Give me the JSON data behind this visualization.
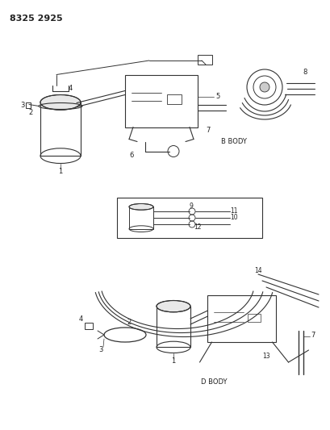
{
  "title": "8325 2925",
  "background_color": "#ffffff",
  "line_color": "#333333",
  "text_color": "#222222",
  "fig_width": 4.1,
  "fig_height": 5.33,
  "dpi": 100,
  "b_body_label": "B BODY",
  "d_body_label": "D BODY"
}
